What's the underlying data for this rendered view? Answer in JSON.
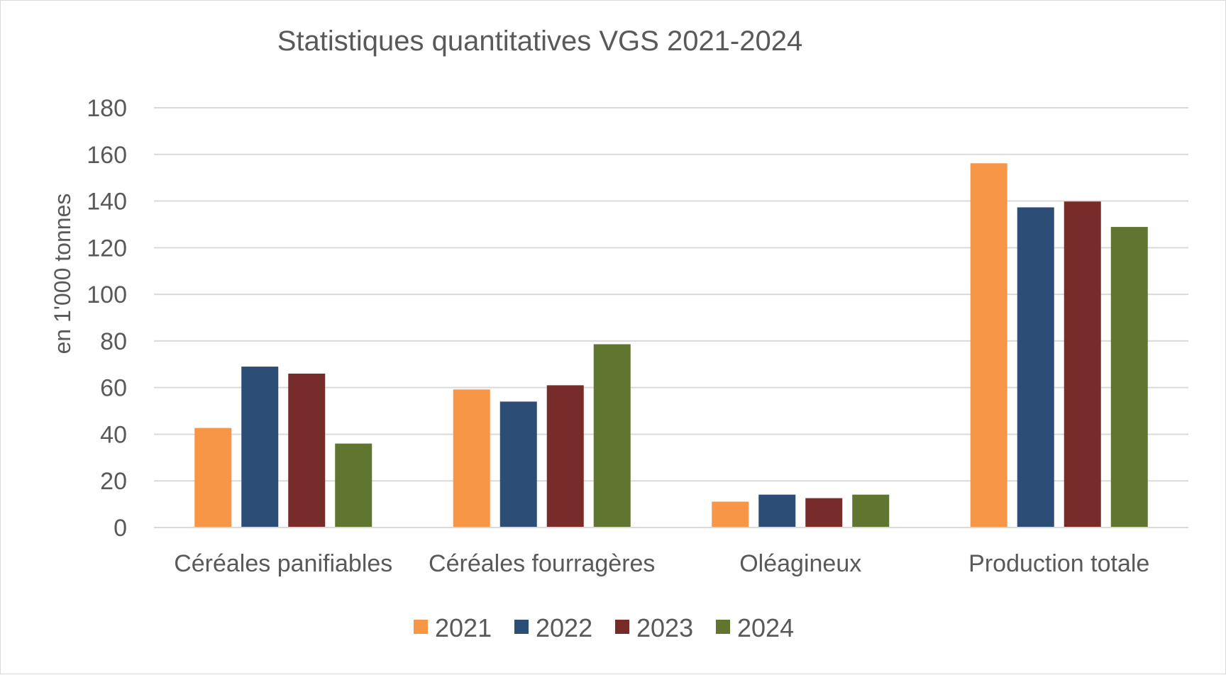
{
  "chart_data": {
    "type": "bar",
    "title": "Statistiques quantitatives VGS 2021-2024",
    "xlabel": "",
    "ylabel": "en 1'000 tonnes",
    "ylim": [
      0,
      180
    ],
    "yticks": [
      "0",
      "20",
      "40",
      "60",
      "80",
      "100",
      "120",
      "140",
      "160",
      "180"
    ],
    "grid": true,
    "legend_position": "bottom",
    "categories": [
      "Céréales panifiables",
      "Céréales fourragères",
      "Oléagineux",
      "Production totale"
    ],
    "series": [
      {
        "name": "2021",
        "color": "#f79646",
        "values": [
          42.7,
          59.2,
          11.1,
          156.2
        ]
      },
      {
        "name": "2022",
        "color": "#2c4d75",
        "values": [
          69.0,
          54.0,
          14.1,
          137.3
        ]
      },
      {
        "name": "2023",
        "color": "#772c2a",
        "values": [
          66.0,
          61.0,
          12.6,
          139.8
        ]
      },
      {
        "name": "2024",
        "color": "#5f7530",
        "values": [
          36.0,
          78.6,
          14.1,
          128.9
        ]
      }
    ]
  }
}
